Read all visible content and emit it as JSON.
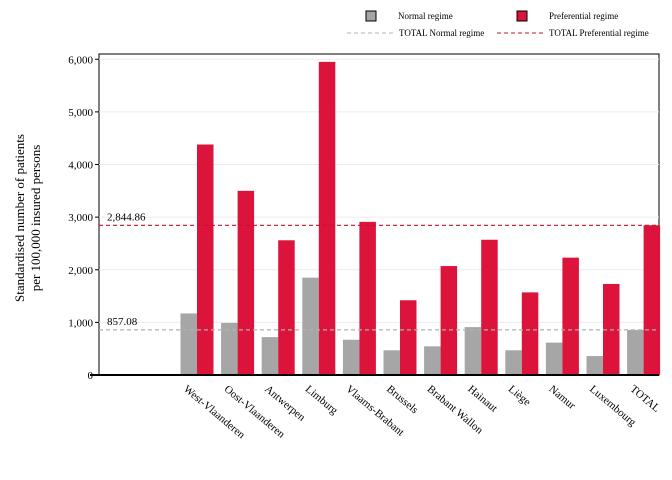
{
  "chart_data": {
    "type": "bar",
    "ylabel": [
      "Standardised number of patients",
      "per 100,000 insured persons"
    ],
    "ylim": [
      0,
      6100
    ],
    "yticks": [
      "0",
      "1,000",
      "2,000",
      "3,000",
      "4,000",
      "5,000",
      "6,000"
    ],
    "ytick_values": [
      0,
      1000,
      2000,
      3000,
      4000,
      5000,
      6000
    ],
    "categories": [
      "West-Vlaanderen",
      "Oost-Vlaanderen",
      "Antwerpen",
      "Limburg",
      "Vlaams-Brabant",
      "Brussels",
      "Brabant Wallon",
      "Hainaut",
      "Liège",
      "Namur",
      "Luxembourg",
      "TOTAL"
    ],
    "series": [
      {
        "name": "Normal regime",
        "color": "#a6a6a6",
        "values": [
          1170,
          990,
          720,
          1850,
          670,
          470,
          545,
          910,
          470,
          615,
          360,
          857.08
        ]
      },
      {
        "name": "Preferential regime",
        "color": "#dc143c",
        "values": [
          4380,
          3500,
          2560,
          5950,
          2910,
          1420,
          2070,
          2570,
          1570,
          2230,
          1730,
          2844.86
        ]
      }
    ],
    "reference_lines": [
      {
        "name": "TOTAL Normal regime",
        "value": 857.08,
        "label": "857.08",
        "color": "#b0b0b0"
      },
      {
        "name": "TOTAL Preferential regime",
        "value": 2844.86,
        "label": "2,844.86",
        "color": "#c8102e"
      }
    ],
    "legend": {
      "placement": "top",
      "entries": [
        "Normal regime",
        "Preferential regime",
        "TOTAL Normal regime",
        "TOTAL Preferential regime"
      ]
    },
    "grid": true
  }
}
